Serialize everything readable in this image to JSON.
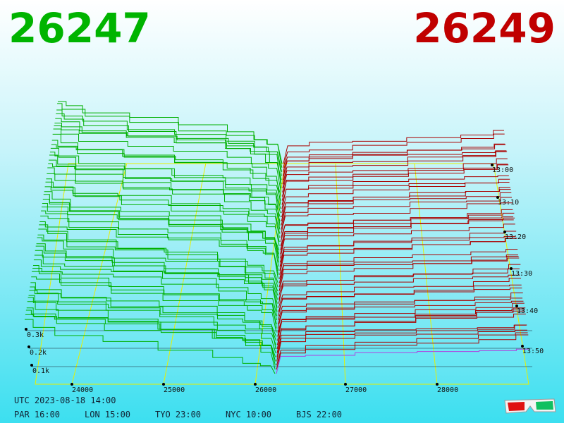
{
  "header": {
    "bid": "26247",
    "ask": "26249"
  },
  "price_axis": [
    "24000",
    "25000",
    "26000",
    "27000",
    "28000"
  ],
  "time_axis": [
    "13:00",
    "13:10",
    "13:20",
    "13:30",
    "13:40",
    "13:50"
  ],
  "depth_axis": [
    "0.3k",
    "0.2k",
    "0.1k"
  ],
  "footer": {
    "utc": "UTC 2023-08-18 14:00",
    "zones": [
      "PAR 16:00",
      "LON 15:00",
      "TYO 23:00",
      "NYC 10:00",
      "BJS 22:00"
    ]
  }
}
